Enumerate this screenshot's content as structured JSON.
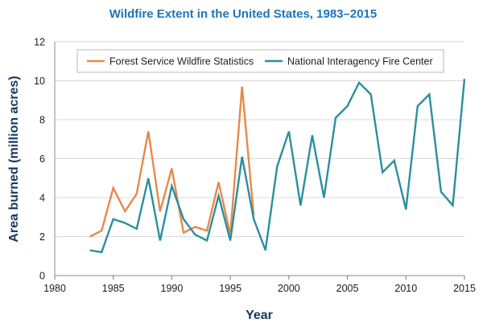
{
  "chart_data": {
    "type": "line",
    "title": "Wildfire Extent in the United States, 1983–2015",
    "xlabel": "Year",
    "ylabel": "Area burned (million acres)",
    "xlim": [
      1980,
      2015
    ],
    "ylim": [
      0,
      12
    ],
    "x_ticks": [
      1980,
      1985,
      1990,
      1995,
      2000,
      2005,
      2010,
      2015
    ],
    "y_ticks": [
      0,
      2,
      4,
      6,
      8,
      10,
      12
    ],
    "grid": true,
    "legend_position": "top",
    "series": [
      {
        "name": "Forest Service Wildfire Statistics",
        "color": "#e8894a",
        "x": [
          1983,
          1984,
          1985,
          1986,
          1987,
          1988,
          1989,
          1990,
          1991,
          1992,
          1993,
          1994,
          1995,
          1996,
          1997
        ],
        "values": [
          2.0,
          2.3,
          4.5,
          3.3,
          4.2,
          7.4,
          3.3,
          5.5,
          2.2,
          2.5,
          2.3,
          4.8,
          2.1,
          9.7,
          3.1
        ]
      },
      {
        "name": "National Interagency Fire Center",
        "color": "#2b8f9f",
        "x": [
          1983,
          1984,
          1985,
          1986,
          1987,
          1988,
          1989,
          1990,
          1991,
          1992,
          1993,
          1994,
          1995,
          1996,
          1997,
          1998,
          1999,
          2000,
          2001,
          2002,
          2003,
          2004,
          2005,
          2006,
          2007,
          2008,
          2009,
          2010,
          2011,
          2012,
          2013,
          2014,
          2015
        ],
        "values": [
          1.3,
          1.2,
          2.9,
          2.7,
          2.4,
          5.0,
          1.8,
          4.6,
          2.9,
          2.1,
          1.8,
          4.1,
          1.8,
          6.1,
          2.9,
          1.3,
          5.6,
          7.4,
          3.6,
          7.2,
          4.0,
          8.1,
          8.7,
          9.9,
          9.3,
          5.3,
          5.9,
          3.4,
          8.7,
          9.3,
          4.3,
          3.6,
          10.1
        ]
      }
    ]
  }
}
